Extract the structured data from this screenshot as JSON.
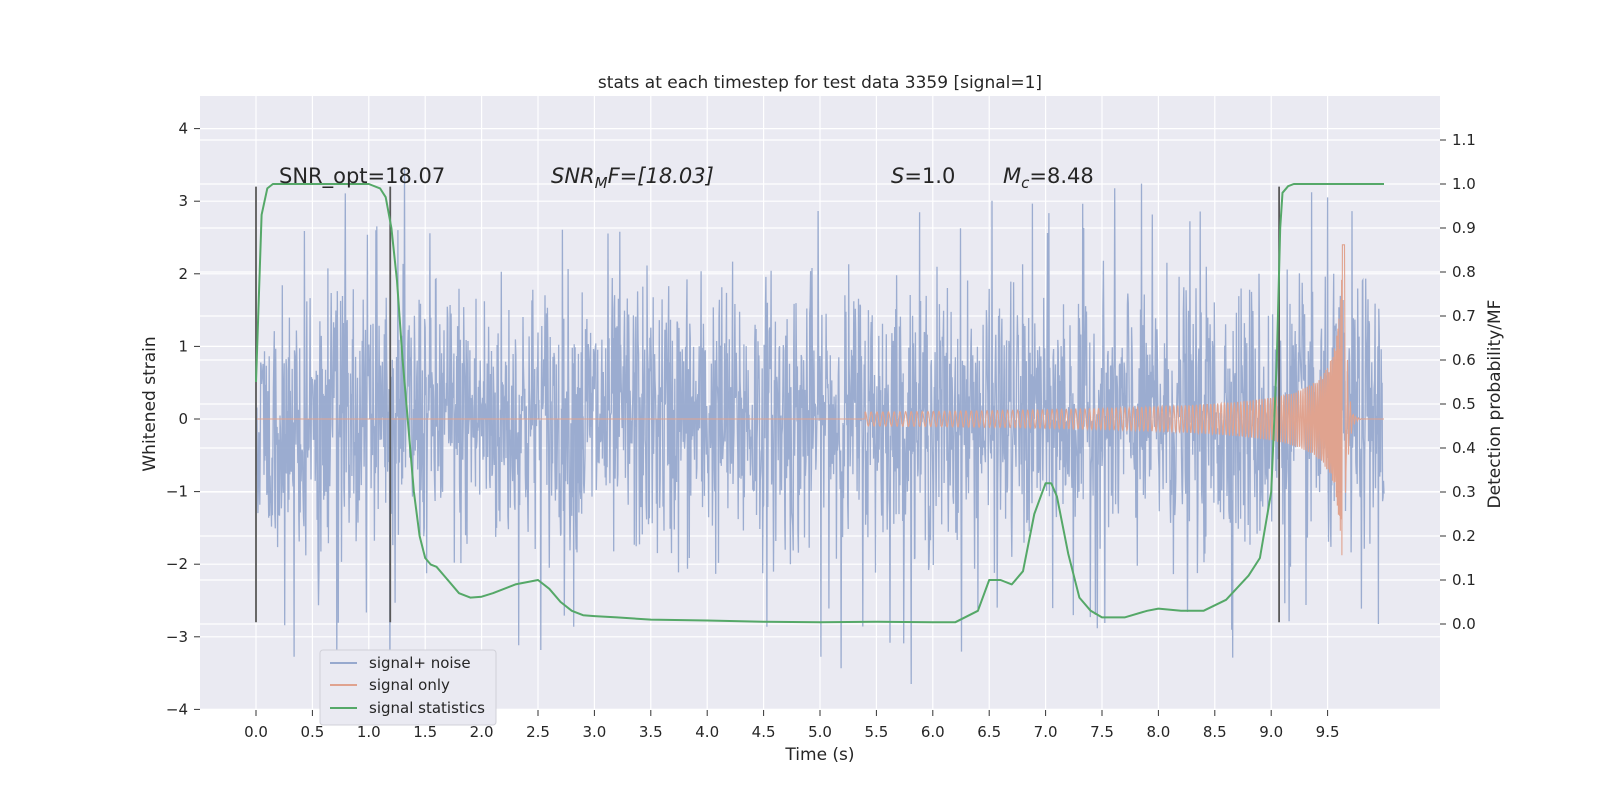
{
  "chart_data": {
    "type": "line",
    "title": "stats at each timestep for test data 3359 [signal=1]",
    "xlabel": "Time (s)",
    "ylabel_left": "Whitened strain",
    "ylabel_right": "Detection probability/MF",
    "xlim": [
      -0.5,
      10.5
    ],
    "ylim_left": [
      -4.0,
      4.4
    ],
    "ylim_right": [
      -0.2,
      1.2
    ],
    "xticks": [
      "0.0",
      "0.5",
      "1.0",
      "1.5",
      "2.0",
      "2.5",
      "3.0",
      "3.5",
      "4.0",
      "4.5",
      "5.0",
      "5.5",
      "6.0",
      "6.5",
      "7.0",
      "7.5",
      "8.0",
      "8.5",
      "9.0",
      "9.5"
    ],
    "yticks_left": [
      "4",
      "3",
      "2",
      "1",
      "0",
      "−1",
      "−2",
      "−3",
      "−4"
    ],
    "yticks_right": [
      "1.1",
      "1.0",
      "0.9",
      "0.8",
      "0.7",
      "0.6",
      "0.5",
      "0.4",
      "0.3",
      "0.2",
      "0.1",
      "0.0"
    ],
    "grid": true,
    "legend_position": "lower-left",
    "colors": {
      "background": "#eaeaf2",
      "grid": "#ffffff",
      "noise": "#97a9ce",
      "signal": "#e0a38f",
      "statistics": "#55a868",
      "vlines": "#595959"
    },
    "annotations": {
      "snr_opt": "SNR_opt=18.07",
      "snr_mf_prefix": "SNR",
      "snr_mf_sub": "M",
      "snr_mf_suffix": "F=[18.03]",
      "s_name": "S",
      "s_value": "=1.0",
      "mc_name": "M",
      "mc_sub": "c",
      "mc_value": "=8.48"
    },
    "vertical_lines_x": [
      0.0,
      1.19,
      9.07
    ],
    "series": [
      {
        "name": "signal+ noise",
        "axis": "left",
        "description_band": {
          "x": [
            0.0,
            10.0
          ],
          "envelope_approx": [
            -2.5,
            2.5
          ],
          "peaks_max": 4.05,
          "peaks_min": -3.65
        }
      },
      {
        "name": "signal only",
        "axis": "left",
        "chirp": {
          "start_x": 5.4,
          "merger_x": 9.65,
          "end_x": 10.0,
          "peak_amplitude": 2.45
        }
      },
      {
        "name": "signal statistics",
        "axis": "right",
        "x": [
          0.0,
          0.05,
          0.1,
          0.15,
          0.2,
          0.3,
          0.5,
          0.8,
          1.0,
          1.1,
          1.15,
          1.2,
          1.25,
          1.3,
          1.35,
          1.4,
          1.45,
          1.5,
          1.55,
          1.6,
          1.7,
          1.8,
          1.9,
          2.0,
          2.1,
          2.3,
          2.5,
          2.6,
          2.7,
          2.8,
          2.9,
          3.0,
          3.2,
          3.5,
          4.0,
          4.5,
          5.0,
          5.5,
          6.0,
          6.2,
          6.4,
          6.5,
          6.6,
          6.7,
          6.8,
          6.9,
          7.0,
          7.05,
          7.1,
          7.2,
          7.3,
          7.4,
          7.5,
          7.7,
          7.9,
          8.0,
          8.2,
          8.4,
          8.6,
          8.8,
          8.9,
          9.0,
          9.05,
          9.08,
          9.1,
          9.15,
          9.2,
          9.3,
          9.5,
          9.7,
          9.9,
          10.0
        ],
        "values": [
          0.55,
          0.93,
          0.99,
          1.0,
          1.0,
          1.0,
          1.0,
          1.0,
          1.0,
          0.99,
          0.97,
          0.9,
          0.78,
          0.6,
          0.45,
          0.3,
          0.2,
          0.15,
          0.135,
          0.13,
          0.1,
          0.07,
          0.06,
          0.062,
          0.07,
          0.09,
          0.1,
          0.08,
          0.05,
          0.03,
          0.02,
          0.018,
          0.015,
          0.01,
          0.008,
          0.005,
          0.004,
          0.005,
          0.004,
          0.004,
          0.03,
          0.1,
          0.1,
          0.09,
          0.12,
          0.25,
          0.32,
          0.32,
          0.29,
          0.16,
          0.06,
          0.03,
          0.015,
          0.015,
          0.03,
          0.035,
          0.03,
          0.03,
          0.055,
          0.11,
          0.15,
          0.3,
          0.6,
          0.9,
          0.98,
          0.995,
          1.0,
          1.0,
          1.0,
          1.0,
          1.0,
          1.0
        ]
      }
    ]
  }
}
